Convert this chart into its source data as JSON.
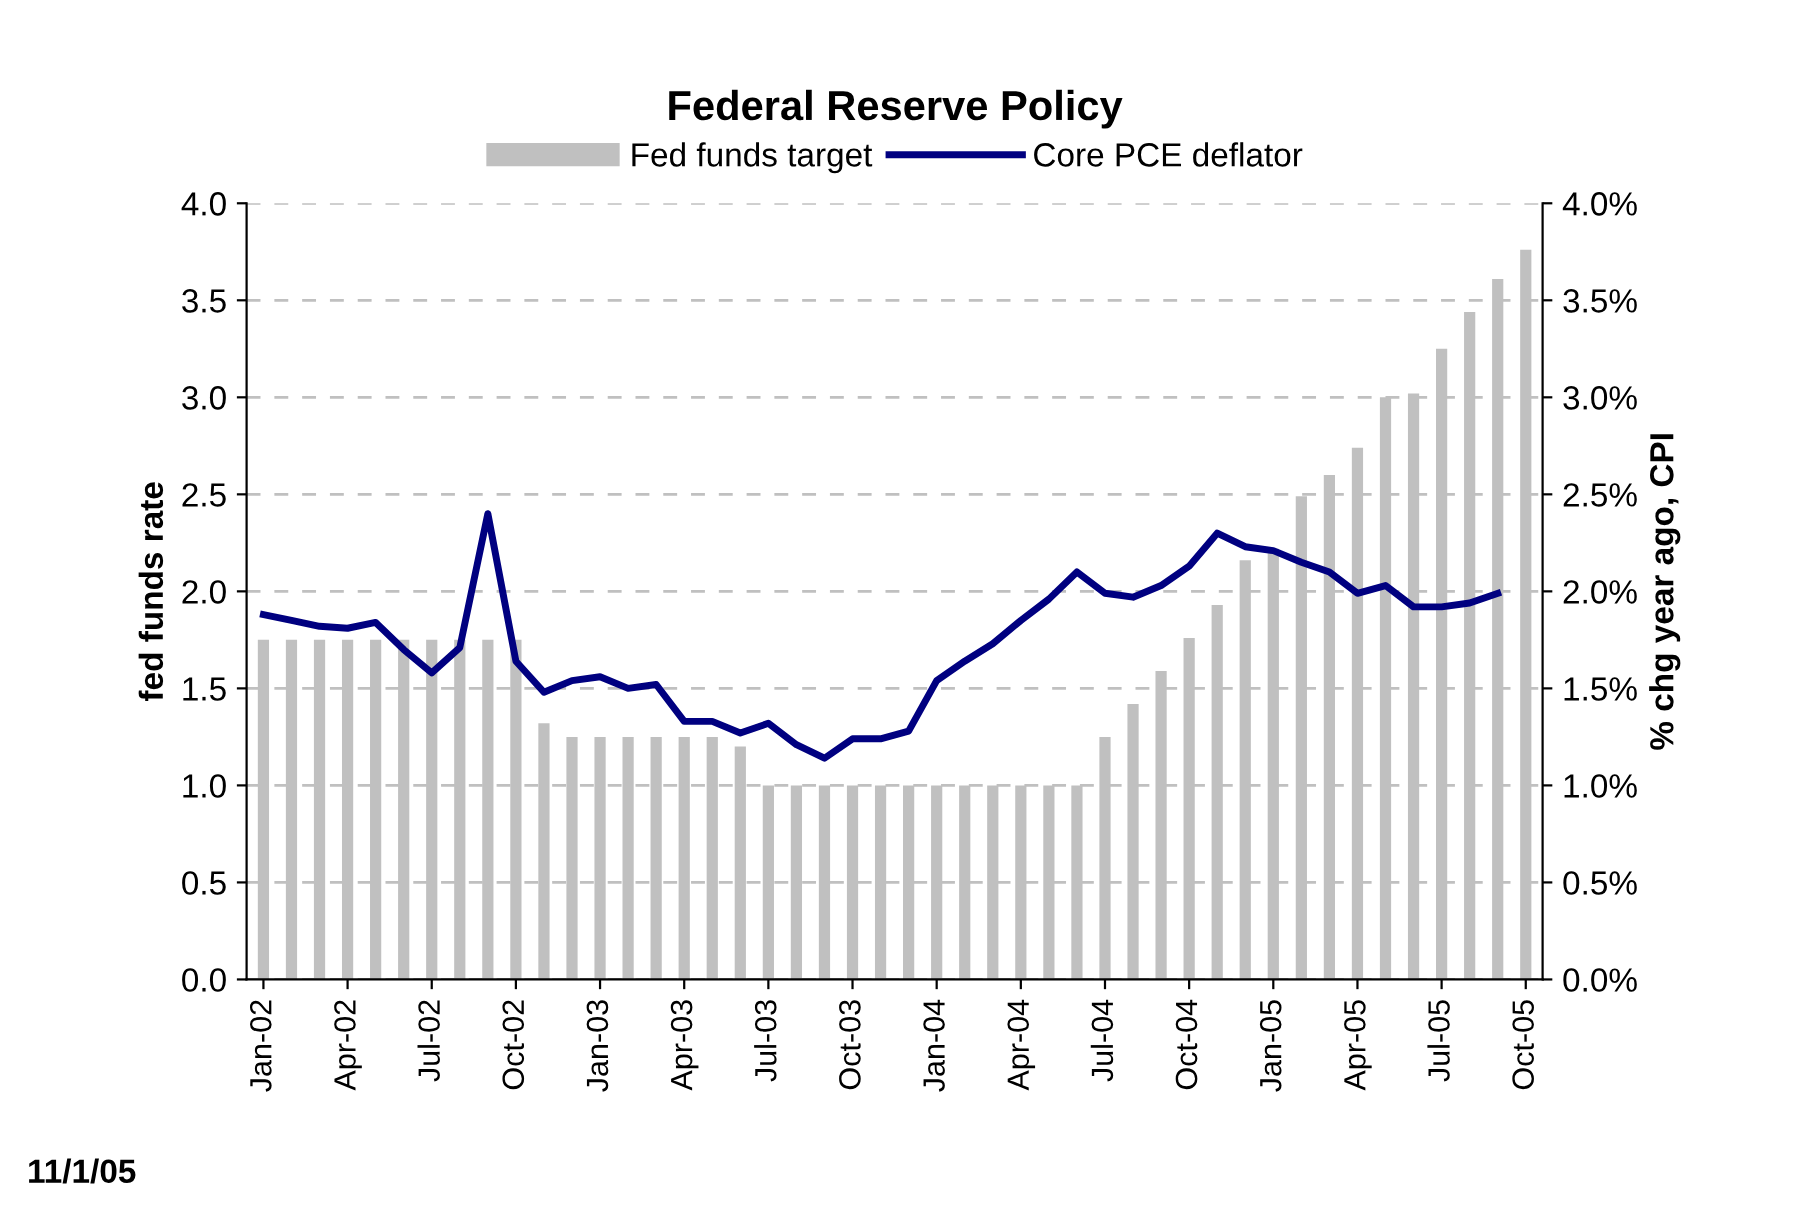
{
  "chart_data": {
    "type": "bar",
    "title": "Federal Reserve Policy",
    "ylabel": "fed funds rate",
    "y2label": "% chg year ago, CPI",
    "categories": [
      "Jan-02",
      null,
      null,
      "Apr-02",
      null,
      null,
      "Jul-02",
      null,
      null,
      "Oct-02",
      null,
      null,
      "Jan-03",
      null,
      null,
      "Apr-03",
      null,
      null,
      "Jul-03",
      null,
      null,
      "Oct-03",
      null,
      null,
      "Jan-04",
      null,
      null,
      "Apr-04",
      null,
      null,
      "Jul-04",
      null,
      null,
      "Oct-04",
      null,
      null,
      "Jan-05",
      null,
      null,
      "Apr-05",
      null,
      null,
      "Jul-05",
      null,
      null,
      "Oct-05"
    ],
    "series": [
      {
        "name": "Fed funds target",
        "color": "#c0c0c0",
        "values": [
          1.75,
          1.75,
          1.75,
          1.75,
          1.75,
          1.75,
          1.75,
          1.75,
          1.75,
          1.75,
          1.32,
          1.25,
          1.25,
          1.25,
          1.25,
          1.25,
          1.25,
          1.2,
          1.0,
          1.0,
          1.0,
          1.0,
          1.0,
          1.0,
          1.0,
          1.0,
          1.0,
          1.0,
          1.0,
          1.0,
          1.25,
          1.42,
          1.59,
          1.76,
          1.93,
          2.16,
          2.22,
          2.49,
          2.6,
          2.74,
          3.0,
          3.02,
          3.25,
          3.44,
          3.61,
          3.76
        ]
      },
      {
        "name": "Core PCE deflator",
        "type": "line",
        "axis": "y2",
        "color": "#000080",
        "values": [
          1.88,
          1.85,
          1.82,
          1.81,
          1.84,
          1.7,
          1.58,
          1.71,
          2.4,
          1.64,
          1.48,
          1.54,
          1.56,
          1.5,
          1.52,
          1.33,
          1.33,
          1.27,
          1.32,
          1.21,
          1.14,
          1.24,
          1.24,
          1.28,
          1.54,
          1.64,
          1.73,
          1.85,
          1.96,
          2.1,
          1.99,
          1.97,
          2.03,
          2.13,
          2.3,
          2.23,
          2.21,
          2.15,
          2.1,
          1.99,
          2.03,
          1.92,
          1.92,
          1.94,
          1.99,
          null
        ]
      }
    ],
    "ylim": [
      0,
      4
    ],
    "yticks": [
      {
        "value": 0,
        "label": "0.0"
      },
      {
        "value": 0.5,
        "label": "0.5"
      },
      {
        "value": 1,
        "label": "1.0"
      },
      {
        "value": 1.5,
        "label": "1.5"
      },
      {
        "value": 2,
        "label": "2.0"
      },
      {
        "value": 2.5,
        "label": "2.5"
      },
      {
        "value": 3,
        "label": "3.0"
      },
      {
        "value": 3.5,
        "label": "3.5"
      },
      {
        "value": 4,
        "label": "4.0"
      }
    ],
    "y2lim": [
      0,
      4
    ],
    "y2ticks": [
      {
        "value": 0,
        "label": "0.0%"
      },
      {
        "value": 0.5,
        "label": "0.5%"
      },
      {
        "value": 1,
        "label": "1.0%"
      },
      {
        "value": 1.5,
        "label": "1.5%"
      },
      {
        "value": 2,
        "label": "2.0%"
      },
      {
        "value": 2.5,
        "label": "2.5%"
      },
      {
        "value": 3,
        "label": "3.0%"
      },
      {
        "value": 3.5,
        "label": "3.5%"
      },
      {
        "value": 4,
        "label": "4.0%"
      }
    ],
    "grid": "y",
    "legend": "top",
    "line_style": "solid",
    "marker": "none",
    "annotations": [
      "11/1/05"
    ]
  }
}
